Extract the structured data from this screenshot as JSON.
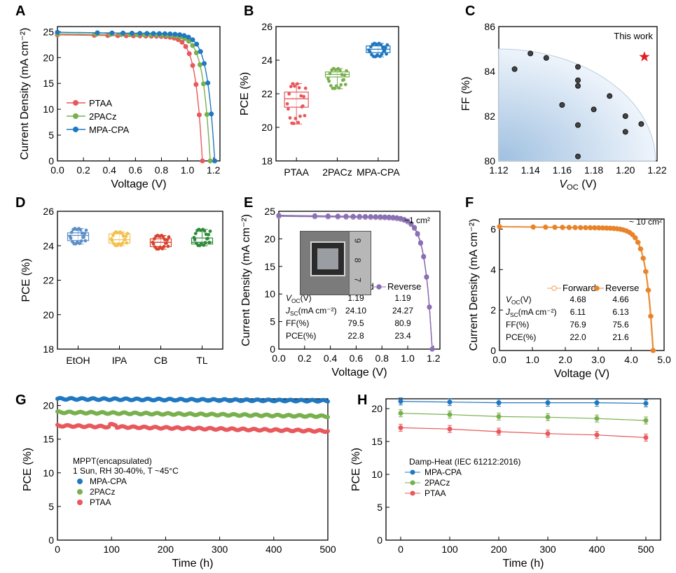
{
  "panels": {
    "A": {
      "letter": "A",
      "chart_data": {
        "type": "line",
        "xlabel": "Voltage (V)",
        "ylabel": "Current Density (mA cm⁻²)",
        "xlim": [
          0.0,
          1.25
        ],
        "ylim": [
          0,
          26
        ],
        "xticks": [
          "0.0",
          "0.2",
          "0.4",
          "0.6",
          "0.8",
          "1.0",
          "1.2"
        ],
        "yticks": [
          "0",
          "5",
          "10",
          "15",
          "20",
          "25"
        ],
        "series": [
          {
            "name": "PTAA",
            "color": "#e8585c",
            "jsc": 24.4,
            "voc": 1.115
          },
          {
            "name": "2PACz",
            "color": "#79b04e",
            "jsc": 24.6,
            "voc": 1.175
          },
          {
            "name": "MPA-CPA",
            "color": "#1f78c0",
            "jsc": 24.9,
            "voc": 1.21
          }
        ]
      }
    },
    "B": {
      "letter": "B",
      "chart_data": {
        "type": "box",
        "ylabel": "PCE (%)",
        "ylim": [
          18,
          26
        ],
        "yticks": [
          "18",
          "20",
          "22",
          "24",
          "26"
        ],
        "categories": [
          "PTAA",
          "2PACz",
          "MPA-CPA"
        ],
        "boxes": [
          {
            "name": "PTAA",
            "color": "#e8585c",
            "q1": 21.2,
            "median": 21.7,
            "q3": 22.1,
            "min": 20.2,
            "max": 22.6
          },
          {
            "name": "2PACz",
            "color": "#79b04e",
            "q1": 23.0,
            "median": 23.15,
            "q3": 23.3,
            "min": 22.3,
            "max": 23.5
          },
          {
            "name": "MPA-CPA",
            "color": "#1f78c0",
            "q1": 24.45,
            "median": 24.65,
            "q3": 24.85,
            "min": 24.2,
            "max": 25.0
          }
        ]
      }
    },
    "C": {
      "letter": "C",
      "chart_data": {
        "type": "scatter",
        "xlabel": "V",
        "xlabel_sub": "OC",
        "xlabel_unit": " (V)",
        "ylabel": "FF (%)",
        "xlim": [
          1.12,
          1.22
        ],
        "ylim": [
          80,
          86
        ],
        "xticks": [
          "1.12",
          "1.14",
          "1.16",
          "1.18",
          "1.20",
          "1.22"
        ],
        "yticks": [
          "80",
          "82",
          "84",
          "86"
        ],
        "points": [
          {
            "x": 1.13,
            "y": 84.1
          },
          {
            "x": 1.14,
            "y": 84.8
          },
          {
            "x": 1.15,
            "y": 84.6
          },
          {
            "x": 1.17,
            "y": 84.2
          },
          {
            "x": 1.17,
            "y": 83.6
          },
          {
            "x": 1.17,
            "y": 83.35
          },
          {
            "x": 1.16,
            "y": 82.5
          },
          {
            "x": 1.18,
            "y": 82.3
          },
          {
            "x": 1.19,
            "y": 82.9
          },
          {
            "x": 1.2,
            "y": 82.0
          },
          {
            "x": 1.2,
            "y": 81.3
          },
          {
            "x": 1.17,
            "y": 81.6
          },
          {
            "x": 1.21,
            "y": 81.65
          },
          {
            "x": 1.17,
            "y": 80.2
          }
        ],
        "highlight": {
          "label": "This work",
          "x": 1.212,
          "y": 84.65,
          "color": "#e02020"
        }
      }
    },
    "D": {
      "letter": "D",
      "chart_data": {
        "type": "box",
        "ylabel": "PCE (%)",
        "ylim": [
          18,
          26
        ],
        "yticks": [
          "18",
          "20",
          "22",
          "24",
          "26"
        ],
        "categories": [
          "EtOH",
          "IPA",
          "CB",
          "TL"
        ],
        "boxes": [
          {
            "name": "EtOH",
            "color": "#5b8fc9",
            "q1": 24.3,
            "median": 24.6,
            "q3": 24.75,
            "min": 24.1,
            "max": 25.0
          },
          {
            "name": "IPA",
            "color": "#f2c14e",
            "q1": 24.15,
            "median": 24.35,
            "q3": 24.7,
            "min": 24.0,
            "max": 24.8
          },
          {
            "name": "CB",
            "color": "#d9442f",
            "q1": 23.95,
            "median": 24.2,
            "q3": 24.4,
            "min": 23.8,
            "max": 24.6
          },
          {
            "name": "TL",
            "color": "#2e8b3a",
            "q1": 24.1,
            "median": 24.2,
            "q3": 24.45,
            "min": 24.0,
            "max": 24.95
          }
        ]
      }
    },
    "E": {
      "letter": "E",
      "area_label": "~1 cm²",
      "chart_data": {
        "type": "line",
        "xlabel": "Voltage (V)",
        "ylabel": "Current Density (mA cm⁻²)",
        "xlim": [
          0.0,
          1.25
        ],
        "ylim": [
          0,
          25
        ],
        "xticks": [
          "0.0",
          "0.2",
          "0.4",
          "0.6",
          "0.8",
          "1.0",
          "1.2"
        ],
        "yticks": [
          "0",
          "5",
          "10",
          "15",
          "20",
          "25"
        ],
        "series": [
          {
            "name": "Forward",
            "color": "#8a6fb3",
            "jsc": 24.1,
            "voc": 1.19,
            "open": true
          },
          {
            "name": "Reverse",
            "color": "#8a6fb3",
            "jsc": 24.27,
            "voc": 1.19,
            "open": false
          }
        ],
        "table": {
          "rows": [
            {
              "label": "V",
              "sub": "OC",
              "suffix": "(V)",
              "forward": "1.19",
              "reverse": "1.19"
            },
            {
              "label": "J",
              "sub": "SC",
              "suffix": "(mA cm⁻²)",
              "forward": "24.10",
              "reverse": "24.27"
            },
            {
              "label": "FF(%)",
              "sub": "",
              "suffix": "",
              "forward": "79.5",
              "reverse": "80.9"
            },
            {
              "label": "PCE(%)",
              "sub": "",
              "suffix": "",
              "forward": "22.8",
              "reverse": "23.4"
            }
          ]
        }
      },
      "photo_ruler_labels": [
        "9",
        "8",
        "7"
      ]
    },
    "F": {
      "letter": "F",
      "area_label": "~ 10 cm²",
      "chart_data": {
        "type": "line",
        "xlabel": "Voltage (V)",
        "ylabel": "Current Density (mA cm⁻²)",
        "xlim": [
          0.0,
          5.0
        ],
        "ylim": [
          0,
          6.5
        ],
        "xticks": [
          "0.0",
          "1.0",
          "2.0",
          "3.0",
          "4.0",
          "5.0"
        ],
        "yticks": [
          "0",
          "2",
          "4",
          "6"
        ],
        "series": [
          {
            "name": "Forward",
            "color": "#f0a050",
            "jsc": 6.11,
            "voc": 4.68,
            "open": true
          },
          {
            "name": "Reverse",
            "color": "#e8832a",
            "jsc": 6.13,
            "voc": 4.66,
            "open": false
          }
        ],
        "table": {
          "rows": [
            {
              "label": "V",
              "sub": "OC",
              "suffix": "(V)",
              "forward": "4.68",
              "reverse": "4.66"
            },
            {
              "label": "J",
              "sub": "SC",
              "suffix": "(mA cm⁻²)",
              "forward": "6.11",
              "reverse": "6.13"
            },
            {
              "label": "FF(%)",
              "sub": "",
              "suffix": "",
              "forward": "76.9",
              "reverse": "75.6"
            },
            {
              "label": "PCE(%)",
              "sub": "",
              "suffix": "",
              "forward": "22.0",
              "reverse": "21.6"
            }
          ]
        }
      }
    },
    "G": {
      "letter": "G",
      "chart_data": {
        "type": "scatter",
        "xlabel": "Time (h)",
        "ylabel": "PCE (%)",
        "xlim": [
          0,
          500
        ],
        "ylim": [
          0,
          21
        ],
        "xticks": [
          "0",
          "100",
          "200",
          "300",
          "400",
          "500"
        ],
        "yticks": [
          "0",
          "5",
          "10",
          "15",
          "20"
        ],
        "legend_title": [
          "MPPT(encapsulated)",
          "1 Sun, RH 30-40%, T ~45°C"
        ],
        "series": [
          {
            "name": "MPA-CPA",
            "color": "#1f78c0",
            "start": 21.0,
            "end": 20.7
          },
          {
            "name": "2PACz",
            "color": "#79b04e",
            "start": 19.0,
            "end": 18.4
          },
          {
            "name": "PTAA",
            "color": "#e8585c",
            "start": 17.0,
            "end": 16.2
          }
        ]
      }
    },
    "H": {
      "letter": "H",
      "chart_data": {
        "type": "line",
        "xlabel": "Time (h)",
        "ylabel": "PCE (%)",
        "xlim": [
          -30,
          530
        ],
        "ylim": [
          0,
          21.5
        ],
        "xticks": [
          "0",
          "100",
          "200",
          "300",
          "400",
          "500"
        ],
        "yticks": [
          "0",
          "5",
          "10",
          "15",
          "20"
        ],
        "legend_title": [
          "Damp-Heat (IEC 61212:2016)"
        ],
        "x": [
          0,
          100,
          200,
          300,
          400,
          500
        ],
        "series": [
          {
            "name": "MPA-CPA",
            "color": "#1f78c0",
            "values": [
              21.1,
              21.0,
              20.9,
              20.9,
              20.9,
              20.8
            ]
          },
          {
            "name": "2PACz",
            "color": "#79b04e",
            "values": [
              19.3,
              19.1,
              18.8,
              18.7,
              18.5,
              18.2
            ]
          },
          {
            "name": "PTAA",
            "color": "#e8585c",
            "values": [
              17.1,
              16.9,
              16.5,
              16.2,
              16.0,
              15.6
            ]
          }
        ]
      }
    }
  }
}
